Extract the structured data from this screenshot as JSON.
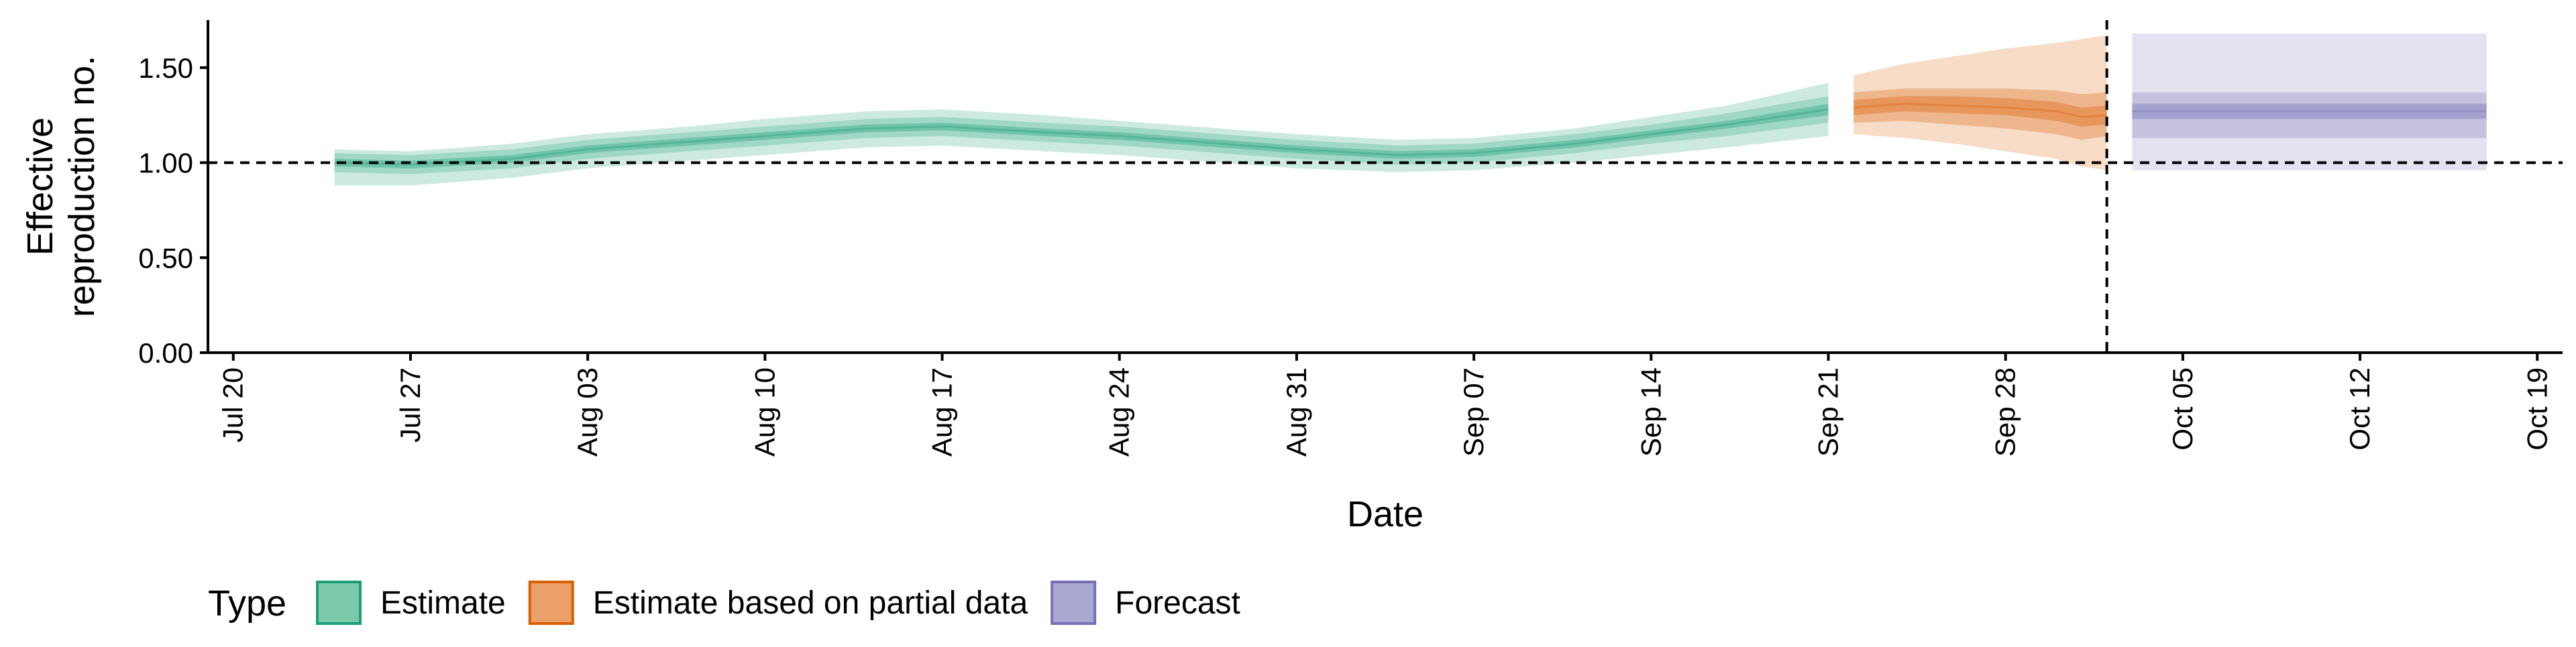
{
  "chart_data": {
    "type": "area",
    "xlabel": "Date",
    "ylabel_lines": [
      "Effective",
      "reproduction no."
    ],
    "ylim": [
      0,
      1.75
    ],
    "yticks": [
      0,
      0.5,
      1.0,
      1.5
    ],
    "ytick_labels": [
      "0.00",
      "0.50",
      "1.00",
      "1.50"
    ],
    "xlim": [
      "2020-07-19",
      "2020-10-20"
    ],
    "xticks": [
      "2020-07-20",
      "2020-07-27",
      "2020-08-03",
      "2020-08-10",
      "2020-08-17",
      "2020-08-24",
      "2020-08-31",
      "2020-09-07",
      "2020-09-14",
      "2020-09-21",
      "2020-09-28",
      "2020-10-05",
      "2020-10-12",
      "2020-10-19"
    ],
    "xtick_labels": [
      "Jul 20",
      "Jul 27",
      "Aug 03",
      "Aug 10",
      "Aug 17",
      "Aug 24",
      "Aug 31",
      "Sep 07",
      "Sep 14",
      "Sep 21",
      "Sep 28",
      "Oct 05",
      "Oct 12",
      "Oct 19"
    ],
    "reference_hline": 1.0,
    "reference_vline_date": "2020-10-02",
    "grid": false,
    "legend": {
      "title": "Type",
      "placement": "bottom-left",
      "entries": [
        {
          "label": "Estimate",
          "fill": "#7cc8ab",
          "stroke": "#1b9e77"
        },
        {
          "label": "Estimate based on partial data",
          "fill": "#eaa068",
          "stroke": "#d95f02"
        },
        {
          "label": "Forecast",
          "fill": "#aaa7d3",
          "stroke": "#7570b3"
        }
      ]
    },
    "series": [
      {
        "type_label": "Estimate",
        "color": "#1b9e77",
        "x": [
          "2020-07-24",
          "2020-07-27",
          "2020-07-31",
          "2020-08-03",
          "2020-08-07",
          "2020-08-10",
          "2020-08-14",
          "2020-08-17",
          "2020-08-21",
          "2020-08-24",
          "2020-08-28",
          "2020-08-31",
          "2020-09-04",
          "2020-09-07",
          "2020-09-11",
          "2020-09-14",
          "2020-09-17",
          "2020-09-21"
        ],
        "median": [
          1.0,
          0.99,
          1.02,
          1.07,
          1.11,
          1.14,
          1.18,
          1.19,
          1.16,
          1.14,
          1.1,
          1.07,
          1.04,
          1.05,
          1.1,
          1.15,
          1.2,
          1.28
        ],
        "lower_20": [
          0.98,
          0.97,
          1.0,
          1.05,
          1.09,
          1.12,
          1.16,
          1.17,
          1.14,
          1.12,
          1.08,
          1.05,
          1.02,
          1.03,
          1.08,
          1.13,
          1.18,
          1.25
        ],
        "upper_20": [
          1.02,
          1.01,
          1.04,
          1.09,
          1.13,
          1.16,
          1.2,
          1.21,
          1.18,
          1.16,
          1.12,
          1.09,
          1.06,
          1.07,
          1.12,
          1.17,
          1.22,
          1.31
        ],
        "lower_50": [
          0.95,
          0.94,
          0.97,
          1.02,
          1.06,
          1.09,
          1.13,
          1.14,
          1.11,
          1.09,
          1.05,
          1.02,
          0.99,
          1.0,
          1.05,
          1.1,
          1.14,
          1.21
        ],
        "upper_50": [
          1.05,
          1.04,
          1.07,
          1.12,
          1.16,
          1.19,
          1.23,
          1.24,
          1.21,
          1.19,
          1.15,
          1.12,
          1.09,
          1.1,
          1.15,
          1.2,
          1.26,
          1.35
        ],
        "lower_90": [
          0.88,
          0.88,
          0.92,
          0.97,
          1.01,
          1.04,
          1.08,
          1.09,
          1.06,
          1.04,
          1.0,
          0.97,
          0.95,
          0.96,
          1.0,
          1.04,
          1.08,
          1.14
        ],
        "upper_90": [
          1.07,
          1.06,
          1.1,
          1.15,
          1.19,
          1.23,
          1.27,
          1.28,
          1.25,
          1.22,
          1.18,
          1.15,
          1.12,
          1.13,
          1.18,
          1.24,
          1.3,
          1.42
        ]
      },
      {
        "type_label": "Estimate based on partial data",
        "color": "#d95f02",
        "x": [
          "2020-09-22",
          "2020-09-24",
          "2020-09-26",
          "2020-09-28",
          "2020-09-30",
          "2020-10-01",
          "2020-10-02"
        ],
        "median": [
          1.29,
          1.31,
          1.3,
          1.29,
          1.27,
          1.24,
          1.25
        ],
        "lower_20": [
          1.25,
          1.27,
          1.26,
          1.25,
          1.22,
          1.19,
          1.2
        ],
        "upper_20": [
          1.33,
          1.35,
          1.35,
          1.34,
          1.32,
          1.29,
          1.3
        ],
        "lower_50": [
          1.21,
          1.22,
          1.2,
          1.18,
          1.15,
          1.12,
          1.14
        ],
        "upper_50": [
          1.37,
          1.39,
          1.39,
          1.39,
          1.38,
          1.36,
          1.37
        ],
        "lower_90": [
          1.15,
          1.13,
          1.1,
          1.06,
          1.02,
          0.98,
          0.96
        ],
        "upper_90": [
          1.46,
          1.52,
          1.56,
          1.6,
          1.63,
          1.65,
          1.67
        ]
      },
      {
        "type_label": "Forecast",
        "color": "#7570b3",
        "x": [
          "2020-10-03",
          "2020-10-17"
        ],
        "median": [
          1.27,
          1.27
        ],
        "lower_20": [
          1.23,
          1.23
        ],
        "upper_20": [
          1.31,
          1.31
        ],
        "lower_50": [
          1.13,
          1.13
        ],
        "upper_50": [
          1.37,
          1.37
        ],
        "lower_90": [
          0.96,
          0.96
        ],
        "upper_90": [
          1.68,
          1.68
        ]
      }
    ]
  }
}
